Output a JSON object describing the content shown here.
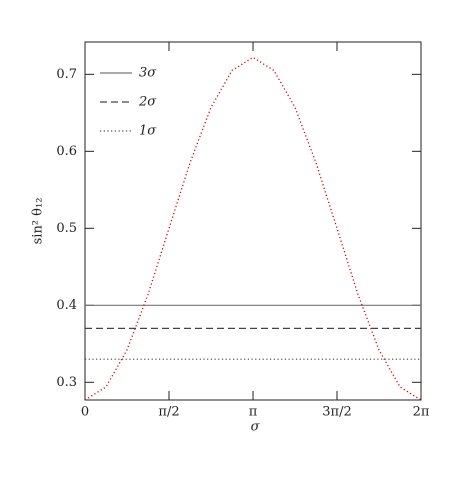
{
  "chart_data": {
    "type": "line",
    "xlabel": "σ",
    "ylabel": "sin² θ₁₂",
    "x": [
      0,
      0.393,
      0.785,
      1.178,
      1.571,
      1.963,
      2.356,
      2.749,
      3.142,
      3.534,
      3.927,
      4.32,
      4.712,
      5.105,
      5.498,
      5.89,
      6.283
    ],
    "series": [
      {
        "color": "#e00000",
        "values": [
          0.277,
          0.294,
          0.342,
          0.414,
          0.5,
          0.585,
          0.657,
          0.705,
          0.722,
          0.705,
          0.657,
          0.585,
          0.5,
          0.414,
          0.342,
          0.294,
          0.277
        ]
      }
    ],
    "hlines": [
      {
        "name": "3σ",
        "value": 0.4,
        "style": "solid",
        "color": "#777777"
      },
      {
        "name": "2σ",
        "value": 0.37,
        "style": "dashed",
        "color": "#444444"
      },
      {
        "name": "1σ",
        "value": 0.33,
        "style": "dotted",
        "color": "#444444"
      }
    ],
    "legend": "upper left",
    "xlim": [
      0,
      6.283
    ],
    "ylim": [
      0.277,
      0.742
    ],
    "xticks": [
      0,
      {
        "value": 1.571,
        "label": "π/2"
      },
      {
        "value": 3.142,
        "label": "π"
      },
      {
        "value": 4.712,
        "label": "3π/2"
      },
      {
        "value": 6.283,
        "label": "2π"
      }
    ],
    "yticks": [
      0.3,
      0.4,
      0.5,
      0.6,
      0.7
    ]
  }
}
